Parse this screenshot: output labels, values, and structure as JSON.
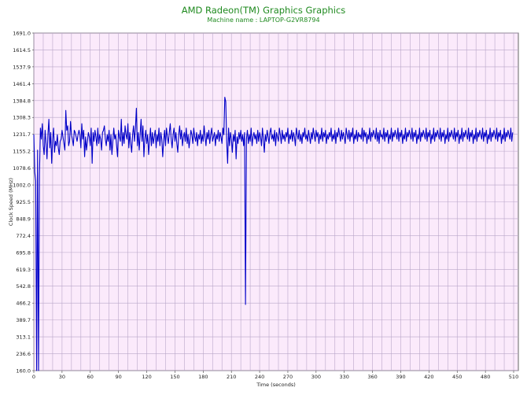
{
  "chart_data": {
    "type": "line",
    "title": "AMD Radeon(TM) Graphics Graphics",
    "subtitle": "Machine name : LAPTOP-G2VR8794",
    "xlabel": "Time (seconds)",
    "ylabel": "Clock Speed (MHz)",
    "xlim": [
      0,
      515
    ],
    "ylim": [
      160.0,
      1691.0
    ],
    "x_ticks": [
      0,
      30,
      60,
      90,
      120,
      150,
      180,
      210,
      240,
      270,
      300,
      330,
      360,
      390,
      420,
      450,
      480,
      510
    ],
    "y_ticks": [
      160.0,
      236.6,
      313.1,
      389.7,
      466.2,
      542.8,
      619.3,
      695.8,
      772.4,
      848.9,
      925.5,
      1002.0,
      1078.6,
      1155.2,
      1231.7,
      1308.3,
      1384.8,
      1461.4,
      1537.9,
      1614.5,
      1691.0
    ],
    "y_tick_labels": [
      "160.0",
      "236.6",
      "313.1",
      "389.7",
      "466.2",
      "542.8",
      "619.3",
      "695.8",
      "772.4",
      "848.9",
      "925.5",
      "1002.0",
      "1078.6",
      "1155.2",
      "1231.7",
      "1308.3",
      "1384.8",
      "1461.4",
      "1537.9",
      "1614.5",
      "1691.0"
    ],
    "grid": true,
    "background": "#fbeafb",
    "line_color": "#0000c8",
    "grid_color": "#b9a6c9",
    "series": [
      {
        "x_start": 0,
        "x_step": 1,
        "values": [
          1231,
          1060,
          1020,
          160,
          1160,
          160,
          1050,
          1260,
          1210,
          1280,
          1180,
          1140,
          1250,
          1190,
          1120,
          1230,
          1300,
          1170,
          1240,
          1100,
          1210,
          1260,
          1150,
          1200,
          1180,
          1230,
          1170,
          1140,
          1200,
          1210,
          1250,
          1220,
          1190,
          1160,
          1340,
          1250,
          1270,
          1180,
          1200,
          1290,
          1230,
          1210,
          1180,
          1250,
          1240,
          1220,
          1200,
          1230,
          1250,
          1230,
          1170,
          1280,
          1210,
          1250,
          1130,
          1220,
          1160,
          1200,
          1240,
          1220,
          1180,
          1260,
          1100,
          1240,
          1200,
          1250,
          1220,
          1180,
          1260,
          1190,
          1230,
          1210,
          1160,
          1240,
          1250,
          1270,
          1210,
          1180,
          1230,
          1200,
          1250,
          1160,
          1230,
          1140,
          1200,
          1260,
          1210,
          1230,
          1180,
          1130,
          1250,
          1220,
          1200,
          1300,
          1180,
          1240,
          1190,
          1270,
          1230,
          1210,
          1280,
          1170,
          1240,
          1190,
          1150,
          1230,
          1270,
          1200,
          1260,
          1350,
          1180,
          1240,
          1160,
          1230,
          1300,
          1200,
          1270,
          1130,
          1210,
          1250,
          1190,
          1230,
          1140,
          1200,
          1260,
          1180,
          1240,
          1190,
          1220,
          1250,
          1170,
          1230,
          1200,
          1260,
          1180,
          1240,
          1210,
          1130,
          1200,
          1250,
          1180,
          1260,
          1220,
          1190,
          1240,
          1280,
          1210,
          1170,
          1230,
          1260,
          1200,
          1240,
          1190,
          1150,
          1230,
          1270,
          1210,
          1250,
          1180,
          1220,
          1240,
          1200,
          1260,
          1190,
          1230,
          1170,
          1210,
          1250,
          1230,
          1190,
          1260,
          1220,
          1200,
          1240,
          1180,
          1230,
          1210,
          1250,
          1190,
          1230,
          1200,
          1270,
          1220,
          1180,
          1240,
          1210,
          1250,
          1190,
          1230,
          1260,
          1200,
          1220,
          1240,
          1180,
          1230,
          1210,
          1250,
          1200,
          1240,
          1220,
          1190,
          1260,
          1230,
          1400,
          1380,
          1200,
          1100,
          1260,
          1180,
          1240,
          1210,
          1150,
          1230,
          1200,
          1250,
          1120,
          1220,
          1190,
          1240,
          1210,
          1250,
          1200,
          1230,
          1180,
          1240,
          460,
          1210,
          1250,
          1190,
          1230,
          1200,
          1260,
          1180,
          1220,
          1240,
          1210,
          1230,
          1190,
          1250,
          1200,
          1240,
          1220,
          1180,
          1260,
          1210,
          1150,
          1230,
          1200,
          1250,
          1220,
          1190,
          1240,
          1260,
          1210,
          1230,
          1200,
          1250,
          1180,
          1240,
          1220,
          1200,
          1260,
          1230,
          1190,
          1250,
          1210,
          1230,
          1200,
          1240,
          1220,
          1260,
          1190,
          1230,
          1210,
          1250,
          1200,
          1240,
          1220,
          1180,
          1260,
          1230,
          1210,
          1250,
          1200,
          1230,
          1190,
          1240,
          1220,
          1260,
          1210,
          1230,
          1200,
          1250,
          1220,
          1190,
          1240,
          1210,
          1260,
          1230,
          1200,
          1250,
          1220,
          1240,
          1190,
          1230,
          1210,
          1260,
          1200,
          1240,
          1220,
          1250,
          1190,
          1230,
          1210,
          1240,
          1220,
          1260,
          1200,
          1230,
          1210,
          1250,
          1190,
          1240,
          1220,
          1260,
          1230,
          1200,
          1250,
          1210,
          1240,
          1220,
          1190,
          1260,
          1230,
          1210,
          1250,
          1200,
          1240,
          1220,
          1260,
          1190,
          1230,
          1210,
          1250,
          1200,
          1240,
          1220,
          1230,
          1210,
          1260,
          1200,
          1250,
          1220,
          1240,
          1190,
          1230,
          1210,
          1260,
          1200,
          1240,
          1220,
          1250,
          1230,
          1210,
          1260,
          1200,
          1240,
          1190,
          1250,
          1220,
          1230,
          1210,
          1260,
          1200,
          1240,
          1220,
          1250,
          1190,
          1230,
          1210,
          1260,
          1200,
          1240,
          1220,
          1250,
          1230,
          1210,
          1260,
          1200,
          1240,
          1220,
          1250,
          1190,
          1230,
          1210,
          1260,
          1200,
          1240,
          1220,
          1250,
          1230,
          1210,
          1260,
          1200,
          1240,
          1220,
          1250,
          1190,
          1230,
          1210,
          1260,
          1200,
          1240,
          1220,
          1250,
          1230,
          1210,
          1260,
          1200,
          1240,
          1220,
          1250,
          1190,
          1230,
          1210,
          1260,
          1200,
          1240,
          1220,
          1250,
          1230,
          1210,
          1260,
          1200,
          1240,
          1220,
          1250,
          1190,
          1230,
          1210,
          1260,
          1200,
          1240,
          1220,
          1250,
          1230,
          1210,
          1260,
          1200,
          1240,
          1220,
          1250,
          1190,
          1230,
          1210,
          1260,
          1200,
          1240,
          1220,
          1250,
          1230,
          1210,
          1260,
          1200,
          1240,
          1220,
          1250,
          1190,
          1230,
          1210,
          1260,
          1200,
          1240,
          1220,
          1250,
          1230,
          1210,
          1260,
          1200,
          1240,
          1220,
          1250,
          1190,
          1230,
          1210,
          1260,
          1200,
          1240,
          1220,
          1250,
          1230,
          1210,
          1260,
          1200,
          1240,
          1220,
          1250,
          1190,
          1230,
          1210,
          1260,
          1200,
          1240,
          1220,
          1250,
          1230,
          1210,
          1260,
          1200,
          1240
        ]
      }
    ]
  }
}
